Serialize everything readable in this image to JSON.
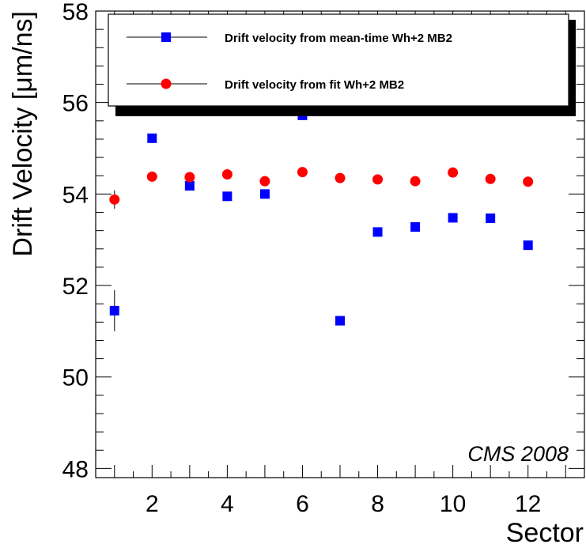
{
  "chart_data": {
    "type": "scatter",
    "xlabel": "Sector",
    "ylabel": "Drift Velocity [μm/ns]",
    "xlim": [
      0.5,
      13.5
    ],
    "ylim": [
      47.8,
      58.0
    ],
    "x_ticks": [
      2,
      4,
      6,
      8,
      10,
      12
    ],
    "y_ticks": [
      48,
      50,
      52,
      54,
      56,
      58
    ],
    "grid": false,
    "legend_position": "top",
    "annotation": "CMS 2008",
    "series": [
      {
        "name": "Drift velocity from mean-time Wh+2 MB2",
        "marker": "square",
        "color": "#0000ff",
        "points": [
          {
            "x": 1,
            "y": 51.45,
            "err": 0.45
          },
          {
            "x": 2,
            "y": 55.22
          },
          {
            "x": 3,
            "y": 54.18
          },
          {
            "x": 4,
            "y": 53.95
          },
          {
            "x": 5,
            "y": 54.0
          },
          {
            "x": 6,
            "y": 55.72
          },
          {
            "x": 7,
            "y": 51.23
          },
          {
            "x": 8,
            "y": 53.17
          },
          {
            "x": 9,
            "y": 53.28
          },
          {
            "x": 10,
            "y": 53.48
          },
          {
            "x": 11,
            "y": 53.47
          },
          {
            "x": 12,
            "y": 52.88
          }
        ]
      },
      {
        "name": "Drift velocity from fit Wh+2 MB2",
        "marker": "circle",
        "color": "#ff0000",
        "points": [
          {
            "x": 1,
            "y": 53.88,
            "err": 0.2
          },
          {
            "x": 2,
            "y": 54.38
          },
          {
            "x": 3,
            "y": 54.37
          },
          {
            "x": 4,
            "y": 54.43
          },
          {
            "x": 5,
            "y": 54.28
          },
          {
            "x": 6,
            "y": 54.48
          },
          {
            "x": 7,
            "y": 54.35
          },
          {
            "x": 8,
            "y": 54.32
          },
          {
            "x": 9,
            "y": 54.28
          },
          {
            "x": 10,
            "y": 54.47
          },
          {
            "x": 11,
            "y": 54.33
          },
          {
            "x": 12,
            "y": 54.27
          }
        ]
      }
    ]
  }
}
